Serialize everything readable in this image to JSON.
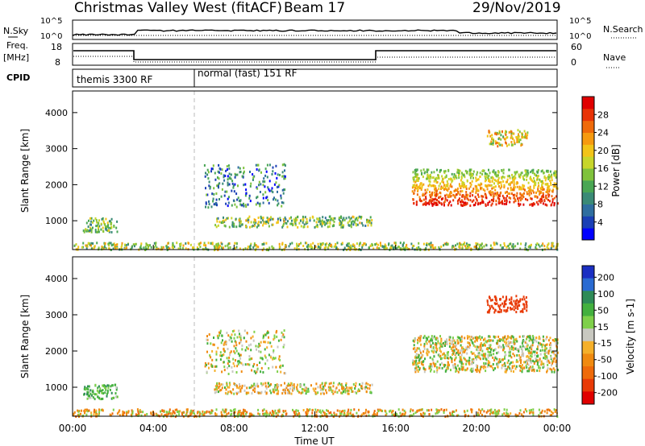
{
  "header": {
    "station": "Christmas Valley West (fitACF)",
    "beam": "Beam 17",
    "date": "29/Nov/2019"
  },
  "strip": {
    "nsky_label": "N.Sky",
    "nsearch_label": "N.Search",
    "freq_label_1": "Freq.",
    "freq_label_2": "[MHz]",
    "nave_label": "Nave",
    "cpid_label": "CPID",
    "log_hi": "10^5",
    "log_lo": "10^0",
    "freq_hi": "18",
    "freq_lo": "8",
    "nave_hi": "60",
    "nave_lo": "0",
    "cpid_segments": [
      {
        "label": "themis 3300 RF",
        "start_hr": 0.0
      },
      {
        "label": "normal (fast) 151 RF",
        "start_hr": 6.0
      }
    ]
  },
  "chart_data": [
    {
      "type": "heatmap",
      "title": "",
      "quantity": "Power",
      "colorbar_label": "Power [dB]",
      "colorbar_ticks": [
        "4",
        "8",
        "12",
        "16",
        "20",
        "24",
        "28"
      ],
      "colorbar_colors": [
        "#0000ff",
        "#1a3fb5",
        "#2f6e9f",
        "#3a8a76",
        "#49a654",
        "#7fc23c",
        "#c7d62b",
        "#f2c418",
        "#f69a10",
        "#ef6a0a",
        "#e83307",
        "#e00000"
      ],
      "ylabel": "Slant Range [km]",
      "yticks": [
        "1000",
        "2000",
        "3000",
        "4000"
      ],
      "ylim": [
        200,
        4600
      ],
      "xlim": [
        0,
        24
      ],
      "features": [
        {
          "name": "near-range",
          "x0": 0.0,
          "x1": 24.0,
          "y0": 220,
          "y1": 420,
          "level": 0.5
        },
        {
          "name": "afternoon band",
          "x0": 7.0,
          "x1": 14.8,
          "y0": 850,
          "y1": 1150,
          "level": 0.45
        },
        {
          "name": "evening arc",
          "x0": 16.8,
          "x1": 24.0,
          "y0": 1450,
          "y1": 2450,
          "level": 0.85
        },
        {
          "name": "morning patch",
          "x0": 0.5,
          "x1": 2.2,
          "y0": 700,
          "y1": 1100,
          "level": 0.4
        },
        {
          "name": "upper arc",
          "x0": 6.5,
          "x1": 10.5,
          "y0": 1400,
          "y1": 2600,
          "level": 0.25
        },
        {
          "name": "high patch",
          "x0": 20.5,
          "x1": 22.5,
          "y0": 3100,
          "y1": 3550,
          "level": 0.6
        }
      ]
    },
    {
      "type": "heatmap",
      "title": "",
      "quantity": "Velocity",
      "colorbar_label": "Velocity [m s-1]",
      "colorbar_ticks": [
        "200",
        "100",
        "50",
        "15",
        "-15",
        "-50",
        "-100",
        "-200"
      ],
      "colorbar_colors": [
        "#1b2fc2",
        "#2a6bd2",
        "#2e8b57",
        "#43b03e",
        "#7fd04a",
        "#c8c8c0",
        "#f5b02a",
        "#f08a10",
        "#ee6a0a",
        "#e83a07",
        "#e00000"
      ],
      "ylabel": "Slant Range [km]",
      "yticks": [
        "1000",
        "2000",
        "3000",
        "4000"
      ],
      "ylim": [
        200,
        4600
      ],
      "xlabel": "Time UT",
      "xticks": [
        "00:00",
        "04:00",
        "08:00",
        "12:00",
        "16:00",
        "20:00",
        "00:00"
      ],
      "xlim": [
        0,
        24
      ],
      "features": [
        {
          "name": "near-range",
          "x0": 0.0,
          "x1": 24.0,
          "y0": 220,
          "y1": 420,
          "value": -40
        },
        {
          "name": "afternoon band",
          "x0": 7.0,
          "x1": 14.8,
          "y0": 850,
          "y1": 1150,
          "value": -10
        },
        {
          "name": "evening arc",
          "x0": 16.8,
          "x1": 24.0,
          "y0": 1450,
          "y1": 2450,
          "value": 0
        },
        {
          "name": "morning patch",
          "x0": 0.5,
          "x1": 2.2,
          "y0": 700,
          "y1": 1100,
          "value": 30
        },
        {
          "name": "upper arc",
          "x0": 6.5,
          "x1": 10.5,
          "y0": 1400,
          "y1": 2600,
          "value": 0
        },
        {
          "name": "high patch",
          "x0": 20.5,
          "x1": 22.5,
          "y0": 3100,
          "y1": 3550,
          "value": -150
        }
      ]
    }
  ]
}
